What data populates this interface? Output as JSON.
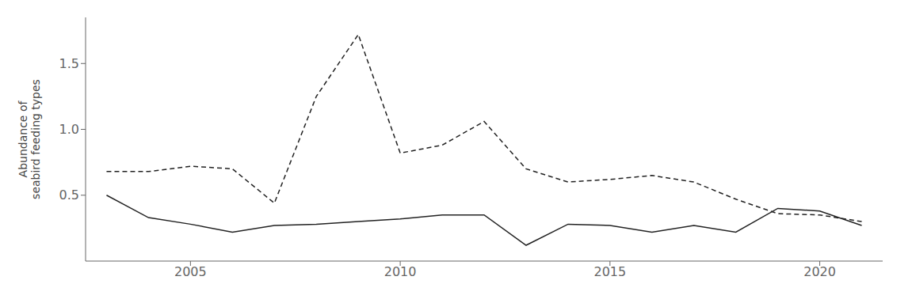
{
  "chart_data": {
    "type": "line",
    "ylabel": "Abundance of\nseabird feeding types",
    "x": [
      2003,
      2004,
      2005,
      2006,
      2007,
      2008,
      2009,
      2010,
      2011,
      2012,
      2013,
      2014,
      2015,
      2016,
      2017,
      2018,
      2019,
      2020,
      2021
    ],
    "series": [
      {
        "color": "#222222",
        "line_style": "solid",
        "values": [
          0.5,
          0.33,
          0.28,
          0.22,
          0.27,
          0.28,
          0.3,
          0.32,
          0.35,
          0.35,
          0.12,
          0.28,
          0.27,
          0.22,
          0.27,
          0.22,
          0.4,
          0.38,
          0.27
        ]
      },
      {
        "color": "#222222",
        "line_style": "dashed",
        "values": [
          0.68,
          0.68,
          0.72,
          0.7,
          0.44,
          1.25,
          1.72,
          0.82,
          0.88,
          1.06,
          0.7,
          0.6,
          0.62,
          0.65,
          0.6,
          0.47,
          0.36,
          0.35,
          0.3
        ]
      }
    ],
    "xlim": [
      2002.5,
      2021.5
    ],
    "xticks": [
      2005,
      2010,
      2015,
      2020
    ],
    "ylim": [
      0,
      1.85
    ],
    "yticks": [
      {
        "value": 0.5,
        "label": "0.5"
      },
      {
        "value": 1,
        "label": "1.0"
      },
      {
        "value": 1.5,
        "label": "1.5"
      }
    ],
    "grid": false
  }
}
